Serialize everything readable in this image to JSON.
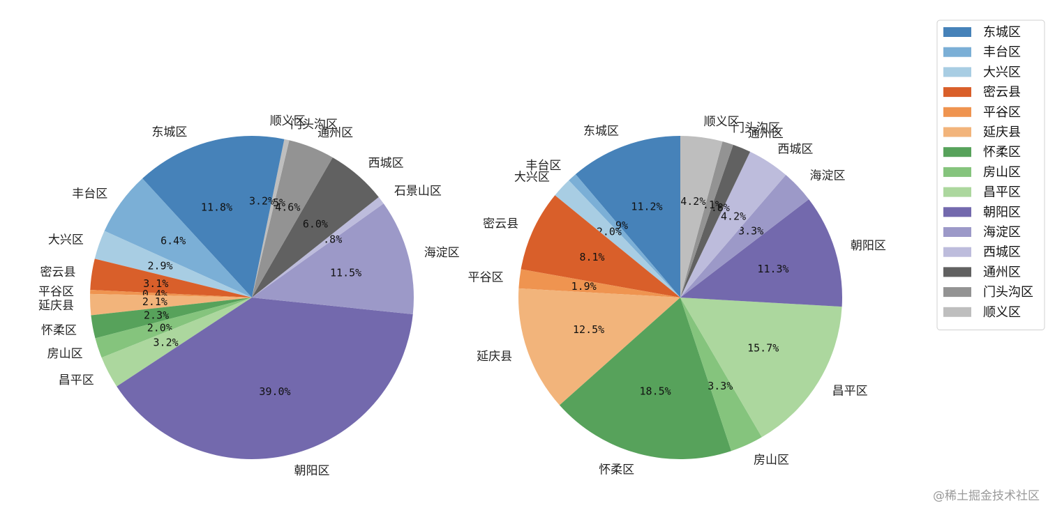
{
  "chart_data": [
    {
      "type": "pie",
      "start_angle": 90,
      "direction": "counterclockwise",
      "slices": [
        {
          "label": "东城区",
          "value": 11.8,
          "pct_label": "11.8%"
        },
        {
          "label": "丰台区",
          "value": 6.4,
          "pct_label": "6.4%"
        },
        {
          "label": "大兴区",
          "value": 2.9,
          "pct_label": "2.9%"
        },
        {
          "label": "密云县",
          "value": 3.1,
          "pct_label": "3.1%"
        },
        {
          "label": "平谷区",
          "value": 0.4,
          "pct_label": "0.4%"
        },
        {
          "label": "延庆县",
          "value": 2.1,
          "pct_label": "2.1%"
        },
        {
          "label": "怀柔区",
          "value": 2.3,
          "pct_label": "2.3%"
        },
        {
          "label": "房山区",
          "value": 2.0,
          "pct_label": "2.0%"
        },
        {
          "label": "昌平区",
          "value": 3.2,
          "pct_label": "3.2%"
        },
        {
          "label": "朝阳区",
          "value": 39.0,
          "pct_label": "39.0%"
        },
        {
          "label": "海淀区",
          "value": 11.5,
          "pct_label": "11.5%"
        },
        {
          "label": "石景山区",
          "value": 0.8,
          "pct_label": "0.8%"
        },
        {
          "label": "西城区",
          "value": 6.0,
          "pct_label": "6.0%"
        },
        {
          "label": "通州区",
          "value": 4.6,
          "pct_label": "4.6%"
        },
        {
          "label": "门头沟区",
          "value": 0.5,
          "pct_label": "0.5%"
        },
        {
          "label": "顺义区",
          "value": 3.2,
          "pct_label": "3.2%"
        }
      ]
    },
    {
      "type": "pie",
      "start_angle": 90,
      "direction": "counterclockwise",
      "slices": [
        {
          "label": "东城区",
          "value": 11.2,
          "pct_label": "11.2%"
        },
        {
          "label": "丰台区",
          "value": 0.9,
          "pct_label": "0.9%"
        },
        {
          "label": "大兴区",
          "value": 2.0,
          "pct_label": "2.0%"
        },
        {
          "label": "密云县",
          "value": 8.1,
          "pct_label": "8.1%"
        },
        {
          "label": "平谷区",
          "value": 1.9,
          "pct_label": "1.9%"
        },
        {
          "label": "延庆县",
          "value": 12.5,
          "pct_label": "12.5%"
        },
        {
          "label": "怀柔区",
          "value": 18.5,
          "pct_label": "18.5%"
        },
        {
          "label": "房山区",
          "value": 3.3,
          "pct_label": "3.3%"
        },
        {
          "label": "昌平区",
          "value": 15.7,
          "pct_label": "15.7%"
        },
        {
          "label": "朝阳区",
          "value": 11.3,
          "pct_label": "11.3%"
        },
        {
          "label": "海淀区",
          "value": 3.3,
          "pct_label": "3.3%"
        },
        {
          "label": "西城区",
          "value": 4.2,
          "pct_label": "4.2%"
        },
        {
          "label": "通州区",
          "value": 1.8,
          "pct_label": "1.8%"
        },
        {
          "label": "门头沟区",
          "value": 1.1,
          "pct_label": "1.1%"
        },
        {
          "label": "顺义区",
          "value": 4.2,
          "pct_label": "4.2%"
        }
      ]
    }
  ],
  "legend": {
    "placement": "top-right",
    "items": [
      {
        "label": "东城区",
        "color": "#4682b9"
      },
      {
        "label": "丰台区",
        "color": "#7bafd6"
      },
      {
        "label": "大兴区",
        "color": "#a8cde3"
      },
      {
        "label": "密云县",
        "color": "#d95f2a"
      },
      {
        "label": "平谷区",
        "color": "#ef9450"
      },
      {
        "label": "延庆县",
        "color": "#f2b47b"
      },
      {
        "label": "怀柔区",
        "color": "#57a25b"
      },
      {
        "label": "房山区",
        "color": "#85c47d"
      },
      {
        "label": "昌平区",
        "color": "#acd79e"
      },
      {
        "label": "朝阳区",
        "color": "#7369ad"
      },
      {
        "label": "海淀区",
        "color": "#9c99c8"
      },
      {
        "label": "西城区",
        "color": "#bdbcdc"
      },
      {
        "label": "通州区",
        "color": "#616161"
      },
      {
        "label": "门头沟区",
        "color": "#939393"
      },
      {
        "label": "顺义区",
        "color": "#bebebe"
      }
    ]
  },
  "slice_colors": {
    "东城区": "#4682b9",
    "丰台区": "#7bafd6",
    "大兴区": "#a8cde3",
    "密云县": "#d95f2a",
    "平谷区": "#ef9450",
    "延庆县": "#f2b47b",
    "怀柔区": "#57a25b",
    "房山区": "#85c47d",
    "昌平区": "#acd79e",
    "朝阳区": "#7369ad",
    "海淀区": "#9c99c8",
    "石景山区": "#bdbcdc",
    "西城区": "#616161",
    "通州区": "#939393",
    "门头沟区": "#bebebe",
    "顺义区": "#4682b9"
  },
  "watermark": "@稀土掘金技术社区"
}
